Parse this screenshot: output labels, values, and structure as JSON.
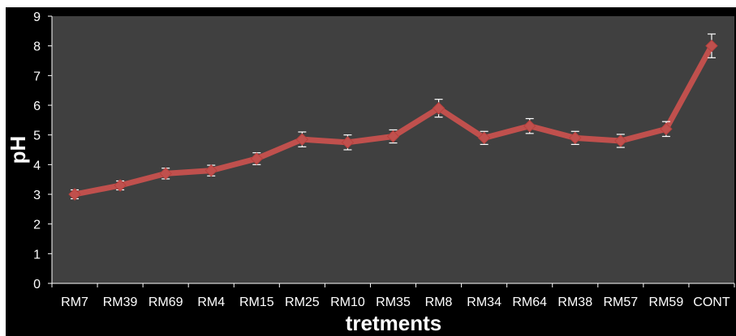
{
  "chart_data": {
    "type": "line",
    "title": "",
    "xlabel": "tretments",
    "ylabel": "pH",
    "ylim": [
      0,
      9
    ],
    "yticks": [
      0,
      1,
      2,
      3,
      4,
      5,
      6,
      7,
      8,
      9
    ],
    "categories": [
      "RM7",
      "RM39",
      "RM69",
      "RM4",
      "RM15",
      "RM25",
      "RM10",
      "RM35",
      "RM8",
      "RM34",
      "RM64",
      "RM38",
      "RM57",
      "RM59",
      "CONT"
    ],
    "series": [
      {
        "values": [
          3.0,
          3.3,
          3.7,
          3.8,
          4.2,
          4.85,
          4.75,
          4.95,
          5.9,
          4.9,
          5.3,
          4.9,
          4.8,
          5.2,
          8.0
        ],
        "errors": [
          0.15,
          0.15,
          0.18,
          0.18,
          0.2,
          0.25,
          0.25,
          0.22,
          0.3,
          0.22,
          0.25,
          0.22,
          0.22,
          0.25,
          0.4
        ],
        "color": "#c0504d"
      }
    ],
    "grid": false,
    "legend": "none",
    "plot_background": "#404040",
    "figure_background": "#000000",
    "text_color": "#ffffff"
  }
}
